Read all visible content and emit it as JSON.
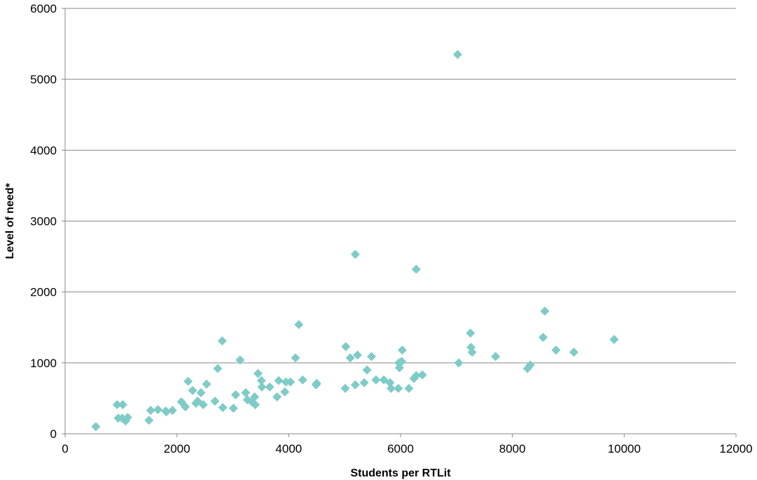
{
  "chart_data": {
    "type": "scatter",
    "title": "",
    "xlabel": "Students per RTLit",
    "ylabel": "Level of need*",
    "xlim": [
      0,
      12000
    ],
    "ylim": [
      0,
      6000
    ],
    "x_ticks": [
      "0",
      "2000",
      "4000",
      "6000",
      "8000",
      "10000",
      "12000"
    ],
    "y_ticks": [
      "0",
      "1000",
      "2000",
      "3000",
      "4000",
      "5000",
      "6000"
    ],
    "grid": "horizontal",
    "legend": "none",
    "marker": "diamond",
    "marker_color": "#7ecbc8",
    "gridline_color": "#888888",
    "series": [
      {
        "points": [
          [
            550,
            100
          ],
          [
            930,
            410
          ],
          [
            950,
            220
          ],
          [
            1020,
            220
          ],
          [
            1030,
            410
          ],
          [
            1080,
            180
          ],
          [
            1120,
            230
          ],
          [
            1500,
            190
          ],
          [
            1530,
            330
          ],
          [
            1660,
            340
          ],
          [
            1800,
            320
          ],
          [
            1810,
            310
          ],
          [
            1920,
            330
          ],
          [
            2080,
            450
          ],
          [
            2150,
            380
          ],
          [
            2200,
            740
          ],
          [
            2280,
            610
          ],
          [
            2340,
            430
          ],
          [
            2370,
            460
          ],
          [
            2430,
            580
          ],
          [
            2470,
            410
          ],
          [
            2530,
            700
          ],
          [
            2680,
            460
          ],
          [
            2730,
            920
          ],
          [
            2810,
            1310
          ],
          [
            2820,
            370
          ],
          [
            3010,
            360
          ],
          [
            3050,
            550
          ],
          [
            3130,
            1040
          ],
          [
            3230,
            580
          ],
          [
            3260,
            480
          ],
          [
            3340,
            450
          ],
          [
            3390,
            520
          ],
          [
            3400,
            410
          ],
          [
            3450,
            850
          ],
          [
            3510,
            750
          ],
          [
            3520,
            660
          ],
          [
            3660,
            660
          ],
          [
            3790,
            520
          ],
          [
            3820,
            750
          ],
          [
            3930,
            590
          ],
          [
            3950,
            730
          ],
          [
            4030,
            730
          ],
          [
            4120,
            1070
          ],
          [
            4180,
            1540
          ],
          [
            4250,
            760
          ],
          [
            4490,
            690
          ],
          [
            4500,
            710
          ],
          [
            5010,
            640
          ],
          [
            5020,
            1230
          ],
          [
            5100,
            1070
          ],
          [
            5190,
            690
          ],
          [
            5190,
            2530
          ],
          [
            5230,
            1110
          ],
          [
            5350,
            720
          ],
          [
            5400,
            900
          ],
          [
            5480,
            1090
          ],
          [
            5560,
            760
          ],
          [
            5700,
            760
          ],
          [
            5810,
            720
          ],
          [
            5830,
            640
          ],
          [
            5960,
            640
          ],
          [
            5970,
            1000
          ],
          [
            5980,
            930
          ],
          [
            6020,
            1020
          ],
          [
            6030,
            1180
          ],
          [
            6150,
            640
          ],
          [
            6240,
            780
          ],
          [
            6280,
            820
          ],
          [
            6280,
            2320
          ],
          [
            6390,
            830
          ],
          [
            7020,
            5350
          ],
          [
            7040,
            1000
          ],
          [
            7250,
            1420
          ],
          [
            7260,
            1220
          ],
          [
            7280,
            1150
          ],
          [
            7700,
            1090
          ],
          [
            8270,
            920
          ],
          [
            8320,
            970
          ],
          [
            8550,
            1360
          ],
          [
            8580,
            1730
          ],
          [
            8780,
            1180
          ],
          [
            9100,
            1150
          ],
          [
            9820,
            1330
          ]
        ]
      }
    ]
  }
}
